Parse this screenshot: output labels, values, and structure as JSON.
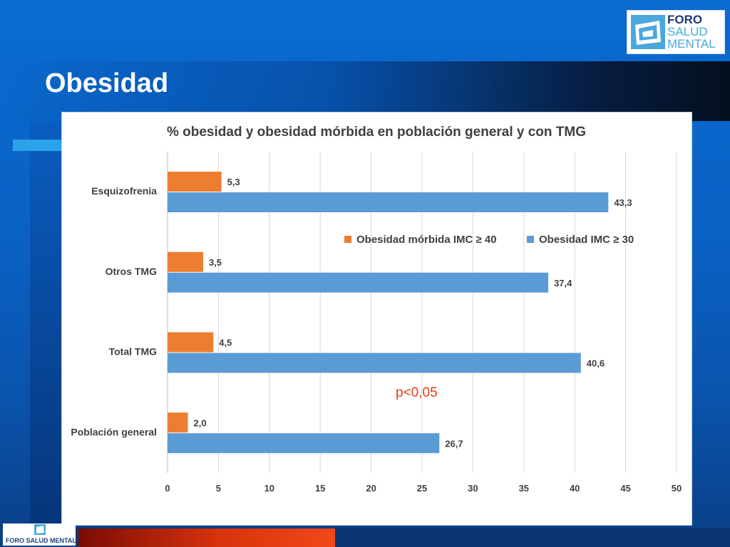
{
  "slide": {
    "title": "Obesidad",
    "logo": {
      "line1": "FORO",
      "line2": "SALUD",
      "line3": "MENTAL"
    },
    "footer_logo_text": "FORO SALUD MENTAL",
    "colors": {
      "background": "#0a62c6",
      "accent_red": "#e0401a",
      "title_text": "#ffffff"
    }
  },
  "chart_data": {
    "type": "bar",
    "orientation": "horizontal",
    "title": "% obesidad y obesidad mórbida en población general y con TMG",
    "categories": [
      "Esquizofrenia",
      "Otros TMG",
      "Total TMG",
      "Población general"
    ],
    "series": [
      {
        "name": "Obesidad mórbida IMC ≥ 40",
        "color": "#ed7d31",
        "values": [
          5.3,
          3.5,
          4.5,
          2.0
        ],
        "labels": [
          "5,3",
          "3,5",
          "4,5",
          "2,0"
        ]
      },
      {
        "name": "Obesidad  IMC ≥ 30",
        "color": "#5b9bd5",
        "values": [
          43.3,
          37.4,
          40.6,
          26.7
        ],
        "labels": [
          "43,3",
          "37,4",
          "40,6",
          "26,7"
        ]
      }
    ],
    "xlim": [
      0,
      50
    ],
    "xticks": [
      0,
      5,
      10,
      15,
      20,
      25,
      30,
      35,
      40,
      45,
      50
    ],
    "grid": true,
    "legend_position": "right-middle",
    "annotation": {
      "text": "p<0,05",
      "color": "#e0401a"
    }
  }
}
